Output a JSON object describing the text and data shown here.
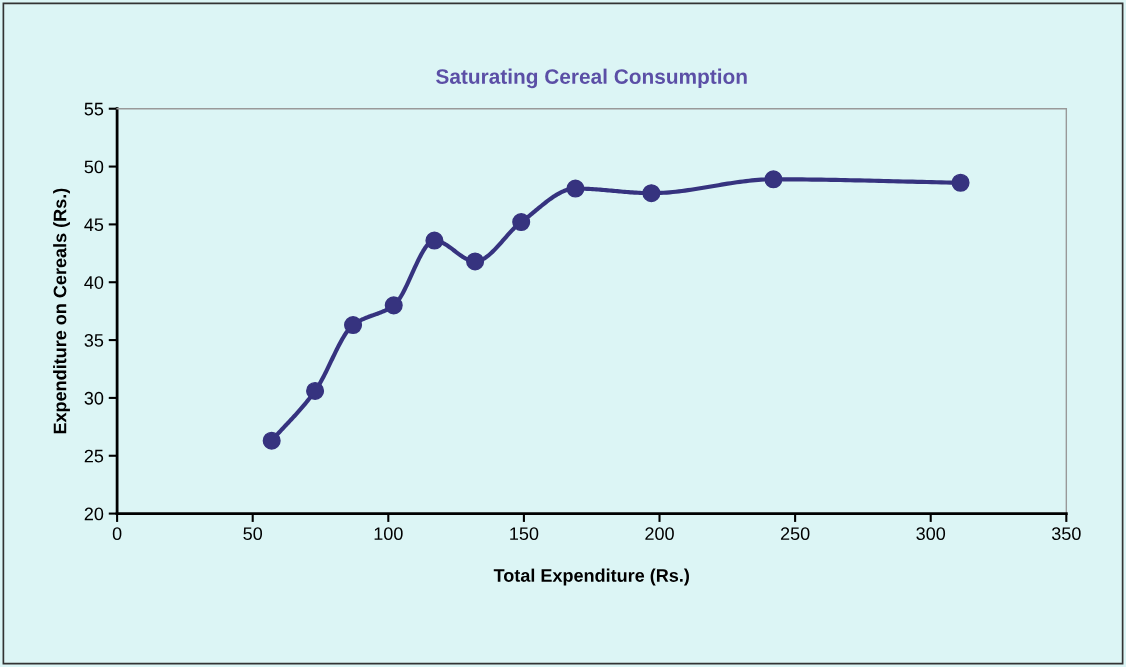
{
  "chart_data": {
    "type": "line",
    "title": "Saturating Cereal Consumption",
    "xlabel": "Total Expenditure (Rs.)",
    "ylabel": "Expenditure on Cereals (Rs.)",
    "x": [
      57,
      73,
      87,
      102,
      117,
      132,
      149,
      169,
      197,
      242,
      311
    ],
    "series": [
      {
        "color": "#36337f",
        "values": [
          26.3,
          30.6,
          36.3,
          38.0,
          43.6,
          41.8,
          45.2,
          48.1,
          47.7,
          48.9,
          48.6
        ]
      }
    ],
    "xlim": [
      0,
      350
    ],
    "xticks": [
      0,
      50,
      100,
      150,
      200,
      250,
      300,
      350
    ],
    "ylim": [
      20,
      55
    ],
    "yticks": [
      20,
      25,
      30,
      35,
      40,
      45,
      50,
      55
    ],
    "grid": false,
    "legend": false,
    "marker": "circle",
    "line_style": "solid"
  }
}
